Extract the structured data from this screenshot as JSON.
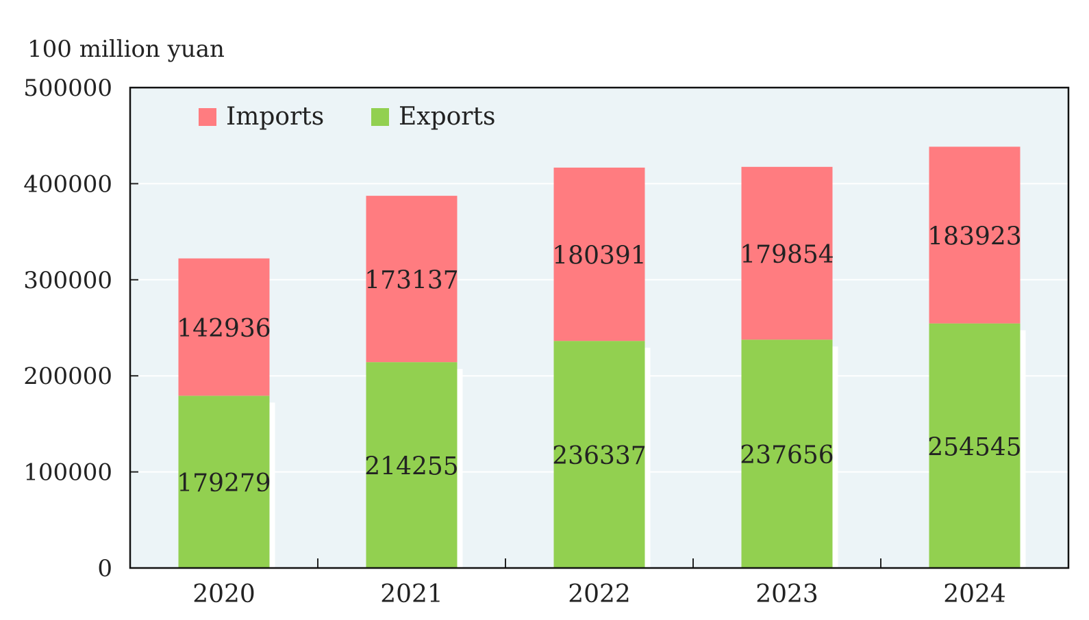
{
  "chart_data": {
    "type": "bar",
    "stacked": true,
    "unit_label": "100 million yuan",
    "categories": [
      "2020",
      "2021",
      "2022",
      "2023",
      "2024"
    ],
    "series": [
      {
        "name": "Exports",
        "values": [
          179279,
          214255,
          236337,
          237656,
          254545
        ],
        "color": "#92d050"
      },
      {
        "name": "Imports",
        "values": [
          142936,
          173137,
          180391,
          179854,
          183923
        ],
        "color": "#ff7c80"
      }
    ],
    "ylim": [
      0,
      500000
    ],
    "yticks": [
      "0",
      "100000",
      "200000",
      "300000",
      "400000",
      "500000"
    ],
    "grid": true,
    "legend": {
      "placement": "top-left",
      "entries": [
        {
          "label": "Imports",
          "color": "#ff7c80"
        },
        {
          "label": "Exports",
          "color": "#92d050"
        }
      ]
    },
    "background_color": "#ecf4f7",
    "grid_color": "#ffffff"
  }
}
